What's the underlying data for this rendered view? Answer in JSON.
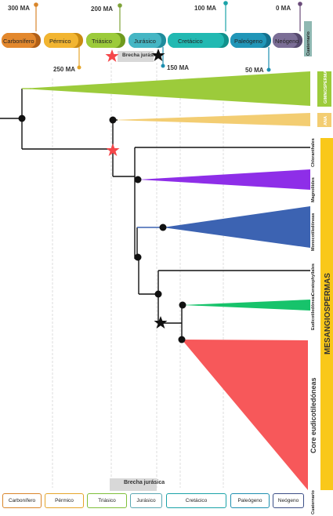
{
  "timeline": {
    "ticks_top": [
      {
        "label": "300 MA",
        "color": "#d9862a"
      },
      {
        "label": "200 MA",
        "color": "#7fa33a"
      },
      {
        "label": "100 MA",
        "color": "#1aa3a8"
      },
      {
        "label": "0 MA",
        "color": "#6a4c7a"
      }
    ],
    "ticks_bottom": [
      {
        "label": "250 MA",
        "color": "#e5a52a"
      },
      {
        "label": "150 MA",
        "color": "#1e8fb0"
      },
      {
        "label": "50 MA",
        "color": "#1e8fb0"
      }
    ],
    "periods": [
      {
        "label": "Carbonífero",
        "color": "#e3882d",
        "dark": "#b05f17"
      },
      {
        "label": "Pérmico",
        "color": "#f2b531",
        "dark": "#c98a12"
      },
      {
        "label": "Triásico",
        "color": "#9ccb3b",
        "dark": "#6f9a1f"
      },
      {
        "label": "Jurásico",
        "color": "#45b6c4",
        "dark": "#1f8c9c"
      },
      {
        "label": "Cretácico",
        "color": "#22b9b2",
        "dark": "#11918b"
      },
      {
        "label": "Paleógeno",
        "color": "#2196b8",
        "dark": "#14708d"
      },
      {
        "label": "Neógeno",
        "color": "#7b6e96",
        "dark": "#564a6e"
      },
      {
        "label": "Cuaternario",
        "color": "#8fb8b2",
        "dark": "#5f8f88"
      }
    ],
    "brecha_label": "Brecha jurásica"
  },
  "clades": {
    "gymnosperms": {
      "label": "GIMNOSPERMAS",
      "color": "#9ccb3b"
    },
    "ana": {
      "label": "ANA",
      "color": "#f3cd72"
    },
    "chloranthales": {
      "label": "Chloranthales"
    },
    "magnoliides": {
      "label": "Magnoliides",
      "color": "#8e2ee8"
    },
    "monocots": {
      "label": "Monocotiledóneas",
      "color": "#3c63b2"
    },
    "ceratophyllales": {
      "label": "Ceratophyllales"
    },
    "eudicots": {
      "label": "Eudicotiledóneas",
      "color": "#17c36b"
    },
    "core_eudicots": {
      "label": "Core eudicotiledóneas",
      "color": "#f7585a"
    },
    "mesangiospermas": {
      "label": "MESANGIOSPERMAS",
      "color": "#f9c81a"
    }
  },
  "legend": {
    "items": [
      {
        "label": "Carbonífero",
        "color": "#d9862a"
      },
      {
        "label": "Pérmico",
        "color": "#e5a52a"
      },
      {
        "label": "Triásico",
        "color": "#7fbf3a"
      },
      {
        "label": "Jurásico",
        "color": "#5aa8b3"
      },
      {
        "label": "Cretácico",
        "color": "#1aa3a8"
      },
      {
        "label": "Paleógeno",
        "color": "#1e8fb0"
      },
      {
        "label": "Neógeno",
        "color": "#3c4f87"
      }
    ],
    "cuaternario": "Cuaternario",
    "brecha": "Brecha jurásica"
  }
}
